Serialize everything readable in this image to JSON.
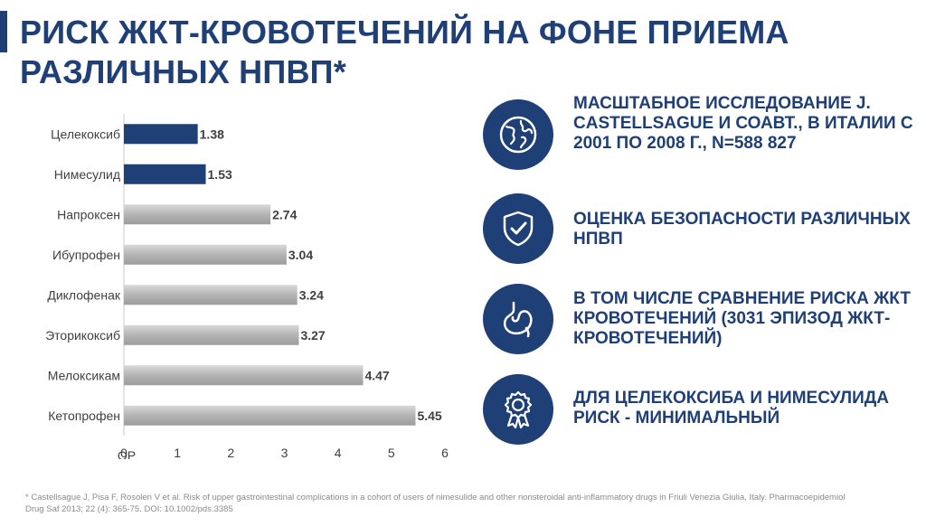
{
  "slide": {
    "title": "РИСК ЖКТ-КРОВОТЕЧЕНИЙ НА ФОНЕ ПРИЕМА РАЗЛИЧНЫХ НПВП*"
  },
  "colors": {
    "primary": "#1f3f77",
    "highlight_bar": "#1f3f77",
    "default_bar": "#b4b4b4"
  },
  "chart_data": {
    "type": "bar",
    "orientation": "horizontal",
    "title": "",
    "xlabel": "OP",
    "ylabel": "",
    "categories": [
      "Целекоксиб",
      "Нимесулид",
      "Напроксен",
      "Ибупрофен",
      "Диклофенак",
      "Эторикоксиб",
      "Мелоксикам",
      "Кетопрофен"
    ],
    "values": [
      1.38,
      1.53,
      2.74,
      3.04,
      3.24,
      3.27,
      4.47,
      5.45
    ],
    "value_labels": [
      "1.38",
      "1.53",
      "2.74",
      "3.04",
      "3.24",
      "3.27",
      "4.47",
      "5.45"
    ],
    "highlighted": [
      true,
      true,
      false,
      false,
      false,
      false,
      false,
      false
    ],
    "xlim": [
      0,
      6
    ],
    "xticks": [
      "0",
      "1",
      "2",
      "3",
      "4",
      "5",
      "6"
    ],
    "grid": true
  },
  "features": [
    {
      "icon": "globe-icon",
      "text": "МАСШТАБНОЕ ИССЛЕДОВАНИЕ J. CASTELLSAGUE И СОАВТ., В ИТАЛИИ С 2001 ПО 2008 Г., N=588 827"
    },
    {
      "icon": "shield-check-icon",
      "text": "ОЦЕНКА БЕЗОПАСНОСТИ РАЗЛИЧНЫХ НПВП"
    },
    {
      "icon": "stomach-icon",
      "text": "В ТОМ ЧИСЛЕ СРАВНЕНИЕ РИСКА ЖКТ КРОВОТЕЧЕНИЙ (3031 ЭПИЗОД ЖКТ-КРОВОТЕЧЕНИЙ)"
    },
    {
      "icon": "award-badge-icon",
      "text": "ДЛЯ ЦЕЛЕКОКСИБА И НИМЕСУЛИДА РИСК - МИНИМАЛЬНЫЙ"
    }
  ],
  "footnote": "* Castellsague J, Pisa F, Rosolen V et al. Risk of upper gastrointestinal complications in a cohort of users of nimesulide and other nonsteroidal anti-inflammatory drugs in Friuli Venezia Giulia, Italy. Pharmacoepidemiol Drug Saf 2013; 22 (4): 365-75. DOI: 10.1002/pds.3385"
}
